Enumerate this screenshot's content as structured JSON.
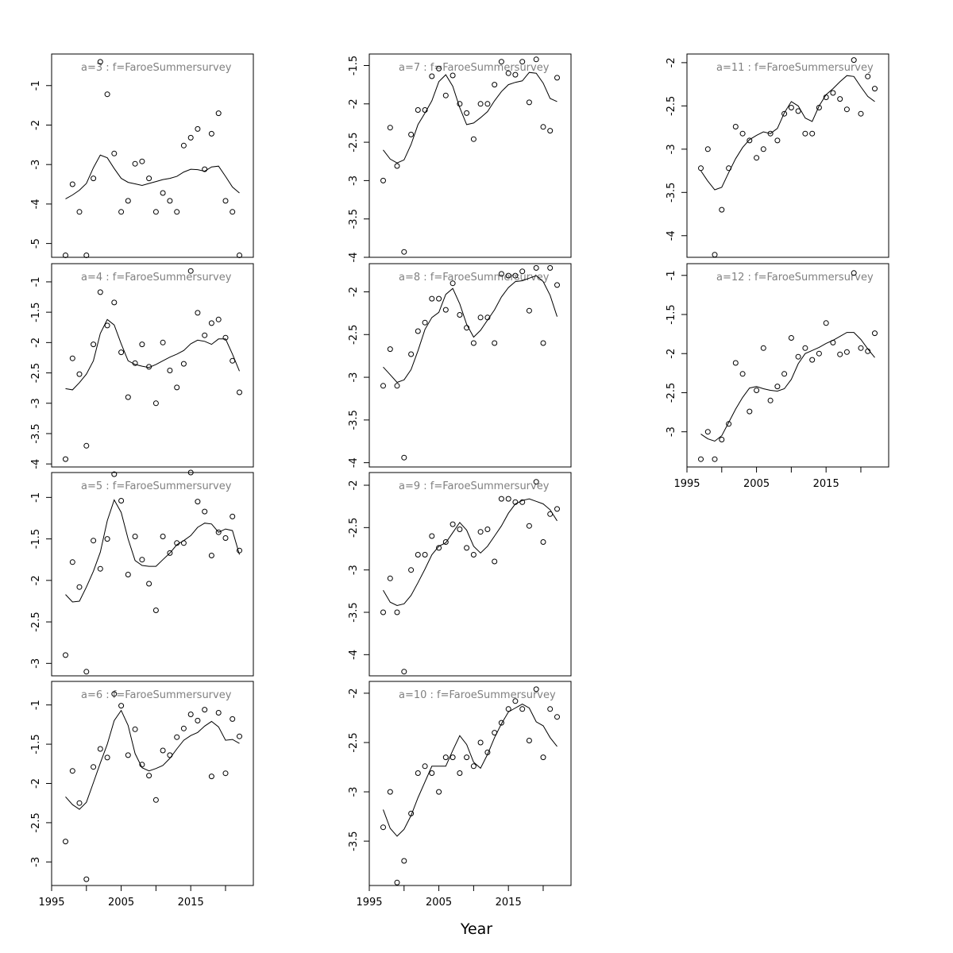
{
  "figure": {
    "xlabel": "Year"
  },
  "chart_data": [
    {
      "type": "scatter",
      "title": "a=3  :  f=FaroeSummersurvey",
      "xlim": [
        1995,
        2024
      ],
      "ylim": [
        -5.35,
        -0.2
      ],
      "yticks": [
        -5,
        -4,
        -3,
        -2,
        -1
      ],
      "xticks": [],
      "grid": false,
      "x": [
        1997,
        1998,
        1999,
        2000,
        2001,
        2002,
        2003,
        2004,
        2005,
        2006,
        2007,
        2008,
        2009,
        2010,
        2011,
        2012,
        2013,
        2014,
        2015,
        2016,
        2017,
        2018,
        2019,
        2020,
        2021,
        2022
      ],
      "observed": [
        -5.3,
        -3.5,
        -4.2,
        -5.3,
        -3.35,
        -0.4,
        -1.22,
        -2.72,
        -4.2,
        -3.92,
        -2.98,
        -2.92,
        -3.35,
        -4.2,
        -3.72,
        -3.92,
        -4.2,
        -2.52,
        -2.32,
        -2.1,
        -3.12,
        -2.22,
        -1.7,
        -3.92,
        -4.2,
        -5.3
      ],
      "fitted": [
        -3.87,
        -3.77,
        -3.65,
        -3.48,
        -3.08,
        -2.76,
        -2.83,
        -3.1,
        -3.35,
        -3.45,
        -3.49,
        -3.53,
        -3.48,
        -3.43,
        -3.38,
        -3.35,
        -3.3,
        -3.19,
        -3.12,
        -3.13,
        -3.17,
        -3.06,
        -3.04,
        -3.3,
        -3.57,
        -3.72
      ]
    },
    {
      "type": "scatter",
      "title": "a=4  :  f=FaroeSummersurvey",
      "xlim": [
        1995,
        2024
      ],
      "ylim": [
        -4.05,
        -0.7
      ],
      "yticks": [
        -4,
        -3.5,
        -3,
        -2.5,
        -2,
        -1.5,
        -1
      ],
      "xticks": [],
      "grid": false,
      "x": [
        1997,
        1998,
        1999,
        2000,
        2001,
        2002,
        2003,
        2004,
        2005,
        2006,
        2007,
        2008,
        2009,
        2010,
        2011,
        2012,
        2013,
        2014,
        2015,
        2016,
        2017,
        2018,
        2019,
        2020,
        2021,
        2022
      ],
      "observed": [
        -3.92,
        -2.26,
        -2.52,
        -3.7,
        -2.03,
        -1.17,
        -1.72,
        -1.34,
        -2.16,
        -2.9,
        -2.34,
        -2.03,
        -2.4,
        -3.0,
        -2.0,
        -2.46,
        -2.74,
        -2.35,
        -0.82,
        -1.51,
        -1.88,
        -1.68,
        -1.62,
        -1.92,
        -2.3,
        -2.82
      ],
      "fitted": [
        -2.76,
        -2.78,
        -2.66,
        -2.52,
        -2.3,
        -1.85,
        -1.62,
        -1.71,
        -2.02,
        -2.3,
        -2.36,
        -2.39,
        -2.41,
        -2.36,
        -2.3,
        -2.24,
        -2.19,
        -2.13,
        -2.02,
        -1.96,
        -1.98,
        -2.03,
        -1.94,
        -1.94,
        -2.19,
        -2.47
      ]
    },
    {
      "type": "scatter",
      "title": "a=5  :  f=FaroeSummersurvey",
      "xlim": [
        1995,
        2024
      ],
      "ylim": [
        -3.15,
        -0.7
      ],
      "yticks": [
        -3,
        -2.5,
        -2,
        -1.5,
        -1
      ],
      "xticks": [],
      "grid": false,
      "x": [
        1997,
        1998,
        1999,
        2000,
        2001,
        2002,
        2003,
        2004,
        2005,
        2006,
        2007,
        2008,
        2009,
        2010,
        2011,
        2012,
        2013,
        2014,
        2015,
        2016,
        2017,
        2018,
        2019,
        2020,
        2021,
        2022
      ],
      "observed": [
        -2.9,
        -1.78,
        -2.08,
        -3.1,
        -1.52,
        -1.86,
        -1.5,
        -0.72,
        -1.04,
        -1.93,
        -1.47,
        -1.75,
        -2.04,
        -2.36,
        -1.47,
        -1.67,
        -1.55,
        -1.55,
        -0.7,
        -1.05,
        -1.17,
        -1.7,
        -1.42,
        -1.49,
        -1.23,
        -1.64
      ],
      "fitted": [
        -2.17,
        -2.26,
        -2.25,
        -2.08,
        -1.89,
        -1.66,
        -1.28,
        -1.03,
        -1.18,
        -1.5,
        -1.76,
        -1.82,
        -1.83,
        -1.83,
        -1.75,
        -1.67,
        -1.57,
        -1.52,
        -1.46,
        -1.36,
        -1.31,
        -1.32,
        -1.42,
        -1.38,
        -1.4,
        -1.69
      ]
    },
    {
      "type": "scatter",
      "title": "a=6  :  f=FaroeSummersurvey",
      "xlim": [
        1995,
        2024
      ],
      "ylim": [
        -3.3,
        -0.7
      ],
      "yticks": [
        -3,
        -2.5,
        -2,
        -1.5,
        -1
      ],
      "xticks": [
        1995,
        2005,
        2015
      ],
      "grid": false,
      "x": [
        1997,
        1998,
        1999,
        2000,
        2001,
        2002,
        2003,
        2004,
        2005,
        2006,
        2007,
        2008,
        2009,
        2010,
        2011,
        2012,
        2013,
        2014,
        2015,
        2016,
        2017,
        2018,
        2019,
        2020,
        2021,
        2022
      ],
      "observed": [
        -2.74,
        -1.84,
        -2.25,
        -3.22,
        -1.79,
        -1.56,
        -1.67,
        -0.86,
        -1.01,
        -1.64,
        -1.31,
        -1.76,
        -1.9,
        -2.21,
        -1.58,
        -1.64,
        -1.41,
        -1.3,
        -1.12,
        -1.2,
        -1.06,
        -1.91,
        -1.1,
        -1.87,
        -1.18,
        -1.4
      ],
      "fitted": [
        -2.17,
        -2.27,
        -2.33,
        -2.24,
        -1.99,
        -1.74,
        -1.5,
        -1.2,
        -1.07,
        -1.26,
        -1.62,
        -1.8,
        -1.84,
        -1.81,
        -1.77,
        -1.68,
        -1.56,
        -1.45,
        -1.39,
        -1.35,
        -1.27,
        -1.21,
        -1.28,
        -1.45,
        -1.44,
        -1.49
      ]
    },
    {
      "type": "scatter",
      "title": "a=7  :  f=FaroeSummersurvey",
      "xlim": [
        1995,
        2024
      ],
      "ylim": [
        -4.0,
        -1.35
      ],
      "yticks": [
        -4,
        -3.5,
        -3,
        -2.5,
        -2,
        -1.5
      ],
      "xticks": [],
      "grid": false,
      "x": [
        1997,
        1998,
        1999,
        2000,
        2001,
        2002,
        2003,
        2004,
        2005,
        2006,
        2007,
        2008,
        2009,
        2010,
        2011,
        2012,
        2013,
        2014,
        2015,
        2016,
        2017,
        2018,
        2019,
        2020,
        2021,
        2022
      ],
      "observed": [
        -3.0,
        -2.31,
        -2.81,
        -3.93,
        -2.4,
        -2.08,
        -2.08,
        -1.64,
        -1.54,
        -1.89,
        -1.63,
        -2.0,
        -2.12,
        -2.46,
        -2.0,
        -2.0,
        -1.75,
        -1.45,
        -1.6,
        -1.62,
        -1.45,
        -1.98,
        -1.42,
        -2.3,
        -2.35,
        -1.66
      ],
      "fitted": [
        -2.6,
        -2.72,
        -2.77,
        -2.73,
        -2.53,
        -2.27,
        -2.12,
        -1.96,
        -1.71,
        -1.62,
        -1.77,
        -2.05,
        -2.27,
        -2.25,
        -2.18,
        -2.1,
        -1.96,
        -1.84,
        -1.75,
        -1.72,
        -1.7,
        -1.59,
        -1.6,
        -1.73,
        -1.93,
        -1.97
      ]
    },
    {
      "type": "scatter",
      "title": "a=8  :  f=FaroeSummersurvey",
      "xlim": [
        1995,
        2024
      ],
      "ylim": [
        -4.05,
        -1.67
      ],
      "yticks": [
        -4,
        -3.5,
        -3,
        -2.5,
        -2
      ],
      "xticks": [],
      "grid": false,
      "x": [
        1997,
        1998,
        1999,
        2000,
        2001,
        2002,
        2003,
        2004,
        2005,
        2006,
        2007,
        2008,
        2009,
        2010,
        2011,
        2012,
        2013,
        2014,
        2015,
        2016,
        2017,
        2018,
        2019,
        2020,
        2021,
        2022
      ],
      "observed": [
        -3.1,
        -2.67,
        -3.1,
        -3.94,
        -2.73,
        -2.46,
        -2.36,
        -2.08,
        -2.08,
        -2.21,
        -1.9,
        -2.27,
        -2.42,
        -2.6,
        -2.3,
        -2.3,
        -2.6,
        -1.79,
        -1.81,
        -1.81,
        -1.76,
        -2.22,
        -1.72,
        -2.6,
        -1.72,
        -1.92
      ],
      "fitted": [
        -2.88,
        -2.97,
        -3.06,
        -3.03,
        -2.91,
        -2.69,
        -2.44,
        -2.3,
        -2.24,
        -2.03,
        -1.96,
        -2.14,
        -2.38,
        -2.53,
        -2.45,
        -2.33,
        -2.21,
        -2.06,
        -1.95,
        -1.88,
        -1.87,
        -1.84,
        -1.81,
        -1.88,
        -2.04,
        -2.29
      ]
    },
    {
      "type": "scatter",
      "title": "a=9  :  f=FaroeSummersurvey",
      "xlim": [
        1995,
        2024
      ],
      "ylim": [
        -4.25,
        -1.85
      ],
      "yticks": [
        -4,
        -3.5,
        -3,
        -2.5,
        -2
      ],
      "xticks": [],
      "grid": false,
      "x": [
        1997,
        1998,
        1999,
        2000,
        2001,
        2002,
        2003,
        2004,
        2005,
        2006,
        2007,
        2008,
        2009,
        2010,
        2011,
        2012,
        2013,
        2014,
        2015,
        2016,
        2017,
        2018,
        2019,
        2020,
        2021,
        2022
      ],
      "observed": [
        -3.5,
        -3.1,
        -3.5,
        -4.2,
        -3.0,
        -2.82,
        -2.82,
        -2.6,
        -2.74,
        -2.67,
        -2.46,
        -2.52,
        -2.74,
        -2.82,
        -2.55,
        -2.52,
        -2.9,
        -2.16,
        -2.16,
        -2.2,
        -2.2,
        -2.48,
        -1.96,
        -2.67,
        -2.34,
        -2.28
      ],
      "fitted": [
        -3.24,
        -3.38,
        -3.42,
        -3.4,
        -3.3,
        -3.15,
        -2.99,
        -2.82,
        -2.72,
        -2.68,
        -2.56,
        -2.44,
        -2.53,
        -2.72,
        -2.8,
        -2.72,
        -2.6,
        -2.48,
        -2.33,
        -2.22,
        -2.18,
        -2.16,
        -2.19,
        -2.22,
        -2.29,
        -2.42
      ]
    },
    {
      "type": "scatter",
      "title": "a=10  :  f=FaroeSummersurvey",
      "xlim": [
        1995,
        2024
      ],
      "ylim": [
        -3.95,
        -1.88
      ],
      "yticks": [
        -3.5,
        -3,
        -2.5,
        -2
      ],
      "xticks": [
        1995,
        2005,
        2015
      ],
      "grid": false,
      "x": [
        1997,
        1998,
        1999,
        2000,
        2001,
        2002,
        2003,
        2004,
        2005,
        2006,
        2007,
        2008,
        2009,
        2010,
        2011,
        2012,
        2013,
        2014,
        2015,
        2016,
        2017,
        2018,
        2019,
        2020,
        2021,
        2022
      ],
      "observed": [
        -3.36,
        -3.0,
        -3.92,
        -3.7,
        -3.22,
        -2.81,
        -2.74,
        -2.81,
        -3.0,
        -2.65,
        -2.65,
        -2.81,
        -2.65,
        -2.74,
        -2.5,
        -2.6,
        -2.4,
        -2.3,
        -2.16,
        -2.08,
        -2.16,
        -2.48,
        -1.96,
        -2.65,
        -2.16,
        -2.24
      ],
      "fitted": [
        -3.18,
        -3.37,
        -3.45,
        -3.38,
        -3.24,
        -3.06,
        -2.9,
        -2.74,
        -2.74,
        -2.74,
        -2.58,
        -2.43,
        -2.52,
        -2.7,
        -2.76,
        -2.62,
        -2.45,
        -2.31,
        -2.19,
        -2.15,
        -2.11,
        -2.15,
        -2.29,
        -2.33,
        -2.45,
        -2.54
      ]
    },
    {
      "type": "scatter",
      "title": "a=11  :  f=FaroeSummersurvey",
      "xlim": [
        1995,
        2024
      ],
      "ylim": [
        -4.25,
        -1.9
      ],
      "yticks": [
        -4,
        -3.5,
        -3,
        -2.5,
        -2
      ],
      "xticks": [],
      "grid": false,
      "x": [
        1997,
        1998,
        1999,
        2000,
        2001,
        2002,
        2003,
        2004,
        2005,
        2006,
        2007,
        2008,
        2009,
        2010,
        2011,
        2012,
        2013,
        2014,
        2015,
        2016,
        2017,
        2018,
        2019,
        2020,
        2021,
        2022
      ],
      "observed": [
        -3.22,
        -3.0,
        -4.22,
        -3.7,
        -3.22,
        -2.74,
        -2.82,
        -2.9,
        -3.1,
        -3.0,
        -2.82,
        -2.9,
        -2.59,
        -2.52,
        -2.56,
        -2.82,
        -2.82,
        -2.52,
        -2.4,
        -2.35,
        -2.42,
        -2.54,
        -1.97,
        -2.59,
        -2.16,
        -2.3
      ],
      "fitted": [
        -3.25,
        -3.37,
        -3.47,
        -3.44,
        -3.27,
        -3.11,
        -2.98,
        -2.89,
        -2.84,
        -2.8,
        -2.82,
        -2.76,
        -2.58,
        -2.45,
        -2.5,
        -2.64,
        -2.68,
        -2.5,
        -2.37,
        -2.3,
        -2.22,
        -2.15,
        -2.16,
        -2.28,
        -2.39,
        -2.45
      ]
    },
    {
      "type": "scatter",
      "title": "a=12  :  f=FaroeSummersurvey",
      "xlim": [
        1995,
        2024
      ],
      "ylim": [
        -3.45,
        -0.85
      ],
      "yticks": [
        -3,
        -2.5,
        -2,
        -1.5,
        -1
      ],
      "xticks": [
        1995,
        2005,
        2015
      ],
      "grid": false,
      "x": [
        1997,
        1998,
        1999,
        2000,
        2001,
        2002,
        2003,
        2004,
        2005,
        2006,
        2007,
        2008,
        2009,
        2010,
        2011,
        2012,
        2013,
        2014,
        2015,
        2016,
        2017,
        2018,
        2019,
        2020,
        2021,
        2022
      ],
      "observed": [
        -3.35,
        -3.0,
        -3.35,
        -3.1,
        -2.9,
        -2.12,
        -2.26,
        -2.74,
        -2.47,
        -1.93,
        -2.6,
        -2.42,
        -2.26,
        -1.8,
        -2.04,
        -1.93,
        -2.08,
        -2.0,
        -1.61,
        -1.86,
        -2.01,
        -1.98,
        -0.97,
        -1.93,
        -1.97,
        -1.74
      ],
      "fitted": [
        -3.03,
        -3.09,
        -3.12,
        -3.05,
        -2.88,
        -2.71,
        -2.56,
        -2.44,
        -2.42,
        -2.45,
        -2.47,
        -2.48,
        -2.45,
        -2.33,
        -2.13,
        -2.0,
        -1.96,
        -1.92,
        -1.87,
        -1.83,
        -1.78,
        -1.73,
        -1.73,
        -1.82,
        -1.94,
        -2.05
      ]
    }
  ]
}
